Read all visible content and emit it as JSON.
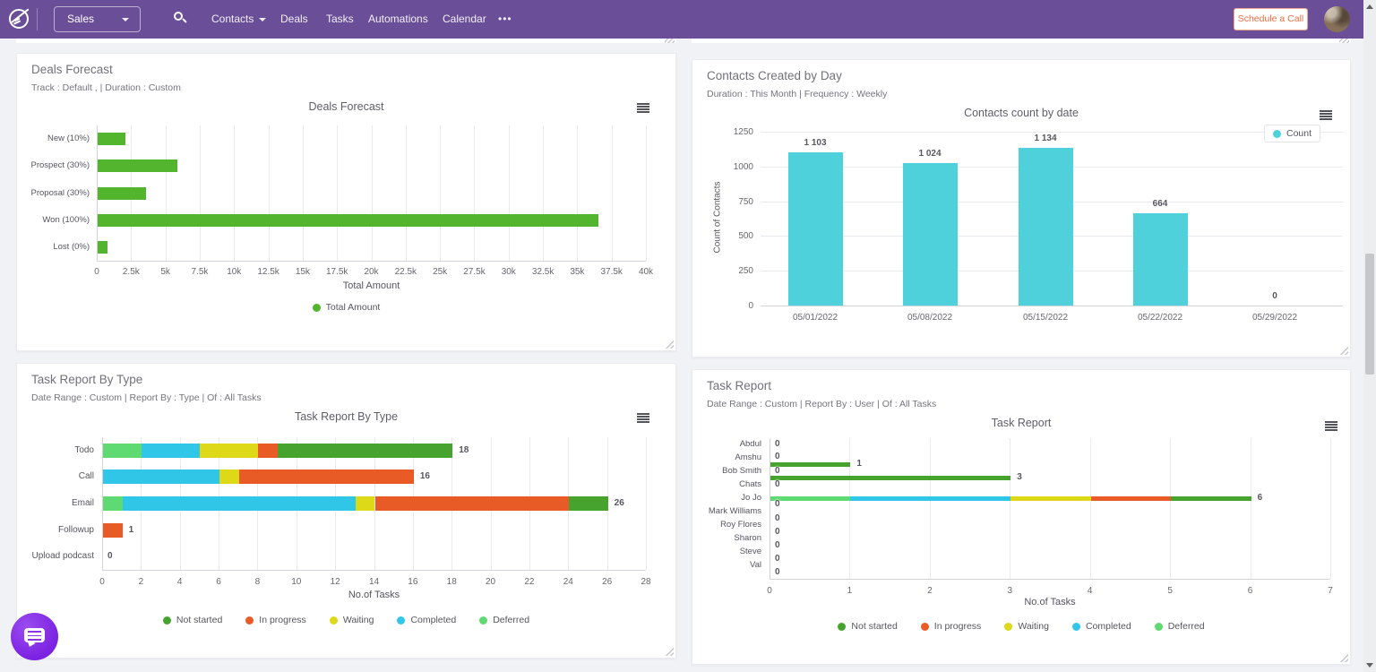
{
  "navbar": {
    "app_menu": "Sales",
    "items": [
      {
        "label": "Contacts",
        "caret": true
      },
      {
        "label": "Deals",
        "caret": false
      },
      {
        "label": "Tasks",
        "caret": false
      },
      {
        "label": "Automations",
        "caret": false
      },
      {
        "label": "Calendar",
        "caret": false
      }
    ],
    "more_label": "•••",
    "schedule_button": "Schedule a Call",
    "bg_color": "#6a4e97"
  },
  "status_colors": {
    "Not started": "#46a42e",
    "In progress": "#e85b27",
    "Waiting": "#ddd818",
    "Completed": "#30c6e8",
    "Deferred": "#5fd971"
  },
  "chart_data": [
    {
      "type": "bar",
      "orientation": "horizontal",
      "panel_title": "Deals Forecast",
      "panel_subtitle": "Track : Default , | Duration : Custom",
      "title": "Deals Forecast",
      "categories": [
        "New (10%)",
        "Prospect (30%)",
        "Proposal (30%)",
        "Won (100%)",
        "Lost (0%)"
      ],
      "values": [
        2000,
        5800,
        3500,
        36500,
        700
      ],
      "xlabel": "Total Amount",
      "xlim": [
        0,
        40000
      ],
      "xticks": [
        "0",
        "2.5k",
        "5k",
        "7.5k",
        "10k",
        "12.5k",
        "15k",
        "17.5k",
        "20k",
        "22.5k",
        "25k",
        "27.5k",
        "30k",
        "32.5k",
        "35k",
        "37.5k",
        "40k"
      ],
      "bar_color": "#53b42e",
      "legend": [
        {
          "label": "Total Amount",
          "color": "#53b42e"
        }
      ]
    },
    {
      "type": "bar",
      "orientation": "vertical",
      "panel_title": "Contacts Created by Day",
      "panel_subtitle": "Duration : This Month | Frequency : Weekly",
      "title": "Contacts count by date",
      "categories": [
        "05/01/2022",
        "05/08/2022",
        "05/15/2022",
        "05/22/2022",
        "05/29/2022"
      ],
      "values": [
        1103,
        1024,
        1134,
        664,
        0
      ],
      "value_labels": [
        "1 103",
        "1 024",
        "1 134",
        "664",
        "0"
      ],
      "ylabel": "Count of Contacts",
      "ylim": [
        0,
        1250
      ],
      "yticks": [
        0,
        250,
        500,
        750,
        1000,
        1250
      ],
      "bar_color": "#4ed1da",
      "legend": [
        {
          "label": "Count",
          "color": "#4ed1da"
        }
      ]
    },
    {
      "type": "stacked_bar",
      "orientation": "horizontal",
      "panel_title": "Task Report By Type",
      "panel_subtitle": "Date Range : Custom | Report By : Type | Of : All Tasks",
      "title": "Task Report By Type",
      "series_order": [
        "Deferred",
        "Completed",
        "Waiting",
        "In progress",
        "Not started"
      ],
      "rows": [
        {
          "label": "Todo",
          "segments": {
            "Deferred": 2,
            "Completed": 3,
            "Waiting": 3,
            "In progress": 1,
            "Not started": 9
          },
          "total": "18"
        },
        {
          "label": "Call",
          "segments": {
            "Completed": 6,
            "Waiting": 1,
            "In progress": 9
          },
          "total": "16"
        },
        {
          "label": "Email",
          "segments": {
            "Deferred": 1,
            "Completed": 12,
            "Waiting": 1,
            "In progress": 10,
            "Not started": 2
          },
          "total": "26"
        },
        {
          "label": "Followup",
          "segments": {
            "In progress": 1
          },
          "total": "1"
        },
        {
          "label": "Upload podcast",
          "segments": {},
          "total": "0"
        }
      ],
      "xlabel": "No.of Tasks",
      "xlim": [
        0,
        28
      ],
      "xticks": [
        "0",
        "2",
        "4",
        "6",
        "8",
        "10",
        "12",
        "14",
        "16",
        "18",
        "20",
        "22",
        "24",
        "26",
        "28"
      ],
      "legend": [
        {
          "label": "Not started",
          "color": "#46a42e"
        },
        {
          "label": "In progress",
          "color": "#e85b27"
        },
        {
          "label": "Waiting",
          "color": "#ddd818"
        },
        {
          "label": "Completed",
          "color": "#30c6e8"
        },
        {
          "label": "Deferred",
          "color": "#5fd971"
        }
      ]
    },
    {
      "type": "stacked_bar",
      "orientation": "horizontal",
      "panel_title": "Task Report",
      "panel_subtitle": "Date Range : Custom | Report By : User | Of : All Tasks",
      "title": "Task Report",
      "series_order": [
        "Deferred",
        "Completed",
        "Waiting",
        "In progress",
        "Not started"
      ],
      "rows": [
        {
          "label": "Abdul",
          "zero": true,
          "zero_dy": 0
        },
        {
          "label": "Amshu",
          "zero": true,
          "zero_dy": -1
        },
        {
          "label": "Bob Smith",
          "zero": true,
          "zero_dy": 0,
          "segments": {
            "Not started": 1
          },
          "bar_dy": -8,
          "total": "1"
        },
        {
          "label": "Chats",
          "zero": true,
          "zero_dy": 0,
          "segments": {
            "Not started": 3
          },
          "bar_dy": -8,
          "total": "3"
        },
        {
          "label": "Jo Jo",
          "zero": true,
          "zero_dy": 7,
          "segments": {
            "Deferred": 1,
            "Completed": 2,
            "Waiting": 1,
            "In progress": 1,
            "Not started": 1
          },
          "bar_dy": 0,
          "total": "6"
        },
        {
          "label": "Mark Williams",
          "zero": true,
          "zero_dy": 8
        },
        {
          "label": "Roy Flores",
          "zero": true,
          "zero_dy": 8
        },
        {
          "label": "Sharon",
          "zero": true,
          "zero_dy": 8
        },
        {
          "label": "Steve",
          "zero": true,
          "zero_dy": 8
        },
        {
          "label": "Val",
          "zero": true,
          "zero_dy": 8
        }
      ],
      "xlabel": "No.of Tasks",
      "xlim": [
        0,
        7
      ],
      "xticks": [
        "0",
        "1",
        "2",
        "3",
        "4",
        "5",
        "6",
        "7"
      ],
      "legend": [
        {
          "label": "Not started",
          "color": "#46a42e"
        },
        {
          "label": "In progress",
          "color": "#e85b27"
        },
        {
          "label": "Waiting",
          "color": "#ddd818"
        },
        {
          "label": "Completed",
          "color": "#30c6e8"
        },
        {
          "label": "Deferred",
          "color": "#5fd971"
        }
      ]
    }
  ]
}
